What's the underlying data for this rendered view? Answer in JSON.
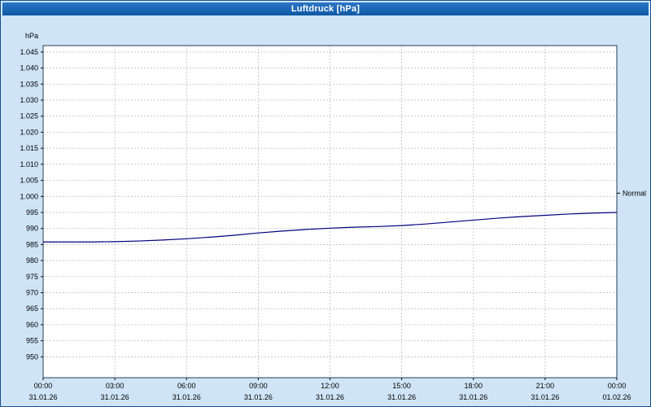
{
  "window": {
    "title": "Luftdruck [hPa]"
  },
  "colors": {
    "titlebar": "#1161b0",
    "titlebar_text": "#ffffff",
    "window_bg": "#cfe4f7",
    "window_border": "#16508e",
    "plot_bg": "#ffffff",
    "plot_border": "#2a3b55",
    "grid": "#b5b5b5",
    "axis_text": "#000000",
    "line": "#00007f"
  },
  "chart_data": {
    "type": "line",
    "title": "Luftdruck [hPa]",
    "unit_label": "hPa",
    "xlabel": "",
    "ylabel": "hPa",
    "grid": true,
    "legend_position": "none",
    "ylim": [
      943.5,
      1047
    ],
    "xlim_hours": [
      0,
      24
    ],
    "y_ticks": [
      1045,
      1040,
      1035,
      1030,
      1025,
      1020,
      1015,
      1010,
      1005,
      1000,
      995,
      990,
      985,
      980,
      975,
      970,
      965,
      960,
      955,
      950
    ],
    "y_tick_labels": [
      "1.045",
      "1.040",
      "1.035",
      "1.030",
      "1.025",
      "1.020",
      "1.015",
      "1.010",
      "1.005",
      "1.000",
      "995",
      "990",
      "985",
      "980",
      "975",
      "970",
      "965",
      "960",
      "955",
      "950"
    ],
    "x_ticks": [
      0,
      3,
      6,
      9,
      12,
      15,
      18,
      21,
      24
    ],
    "x_tick_labels": [
      "00:00",
      "03:00",
      "06:00",
      "09:00",
      "12:00",
      "15:00",
      "18:00",
      "21:00",
      "00:00"
    ],
    "x_date_labels": [
      "31.01.26",
      "31.01.26",
      "31.01.26",
      "31.01.26",
      "31.01.26",
      "31.01.26",
      "31.01.26",
      "31.01.26",
      "01.02.26"
    ],
    "series": [
      {
        "name": "Luftdruck",
        "x": [
          0,
          1,
          2,
          3,
          4,
          5,
          6,
          7,
          8,
          9,
          10,
          11,
          12,
          13,
          14,
          15,
          16,
          17,
          18,
          19,
          20,
          21,
          22,
          23,
          24
        ],
        "values": [
          985.8,
          985.8,
          985.8,
          985.9,
          986.1,
          986.4,
          986.8,
          987.3,
          987.9,
          988.6,
          989.2,
          989.7,
          990.1,
          990.4,
          990.6,
          990.9,
          991.4,
          992.0,
          992.6,
          993.2,
          993.7,
          994.1,
          994.5,
          994.8,
          995.0
        ]
      }
    ],
    "annotations": [
      {
        "label": "Normal",
        "value": 1001
      }
    ]
  }
}
